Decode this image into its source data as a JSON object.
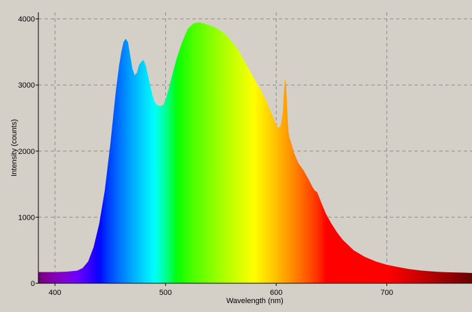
{
  "chart_data": {
    "type": "area",
    "title": "",
    "xlabel": "Wavelength (nm)",
    "ylabel": "Intensity (counts)",
    "xlim": [
      385,
      777
    ],
    "ylim": [
      0,
      4100
    ],
    "x_ticks": [
      400,
      500,
      600,
      700
    ],
    "y_ticks": [
      0,
      1000,
      2000,
      3000,
      4000
    ],
    "grid": true,
    "fill": "spectral gradient by wavelength",
    "series": [
      {
        "x": [
          385,
          400,
          410,
          420,
          425,
          430,
          435,
          440,
          445,
          450,
          455,
          458,
          460,
          462,
          464,
          466,
          468,
          470,
          472,
          474,
          476,
          478,
          480,
          482,
          484,
          486,
          488,
          490,
          492,
          495,
          498,
          500,
          503,
          506,
          510,
          515,
          520,
          525,
          530,
          535,
          540,
          545,
          550,
          555,
          560,
          565,
          570,
          575,
          580,
          585,
          590,
          595,
          600,
          602,
          604,
          606,
          607,
          608,
          609,
          610,
          611,
          612,
          614,
          616,
          618,
          620,
          625,
          630,
          633,
          635,
          637,
          640,
          645,
          650,
          655,
          660,
          670,
          680,
          690,
          700,
          710,
          720,
          730,
          740,
          750,
          760,
          770,
          777
        ],
        "y": [
          170,
          170,
          175,
          190,
          230,
          330,
          550,
          900,
          1400,
          2100,
          2900,
          3300,
          3500,
          3650,
          3700,
          3650,
          3450,
          3250,
          3150,
          3180,
          3300,
          3350,
          3380,
          3300,
          3150,
          3000,
          2850,
          2750,
          2700,
          2680,
          2700,
          2780,
          2950,
          3150,
          3400,
          3650,
          3850,
          3930,
          3950,
          3930,
          3900,
          3870,
          3820,
          3750,
          3650,
          3550,
          3400,
          3250,
          3100,
          2950,
          2800,
          2600,
          2400,
          2350,
          2380,
          2600,
          2900,
          3100,
          3000,
          2600,
          2300,
          2200,
          2100,
          1980,
          1900,
          1820,
          1700,
          1550,
          1450,
          1400,
          1380,
          1250,
          1050,
          900,
          770,
          660,
          500,
          400,
          330,
          280,
          245,
          215,
          195,
          180,
          170,
          165,
          160,
          155
        ]
      }
    ]
  }
}
